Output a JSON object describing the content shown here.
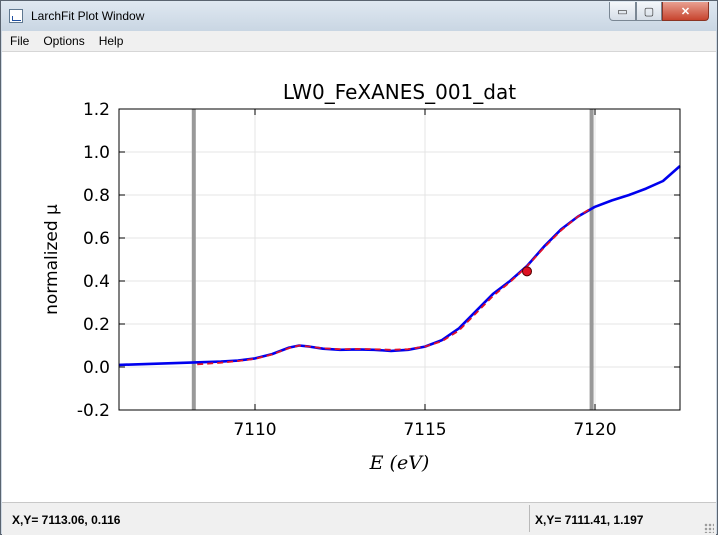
{
  "window": {
    "title": "LarchFit Plot Window",
    "controls": {
      "minimize": "▭",
      "maximize": "▢",
      "close": "✕"
    }
  },
  "menu": {
    "items": [
      "File",
      "Options",
      "Help"
    ]
  },
  "chart_data": {
    "type": "line",
    "title": "LW0_FeXANES_001_dat",
    "xlabel": "E (eV)",
    "ylabel": "normalized μ",
    "xlim": [
      7106,
      7122.5
    ],
    "ylim": [
      -0.2,
      1.2
    ],
    "xticks": [
      7110,
      7115,
      7120
    ],
    "yticks": [
      -0.2,
      0.0,
      0.2,
      0.4,
      0.6,
      0.8,
      1.0,
      1.2
    ],
    "grid": true,
    "series": [
      {
        "style": "solid",
        "color": "#0000ee",
        "x": [
          7106,
          7107,
          7108,
          7109,
          7109.5,
          7110,
          7110.5,
          7111,
          7111.3,
          7111.6,
          7112,
          7112.5,
          7113,
          7113.5,
          7114,
          7114.5,
          7115,
          7115.5,
          7116,
          7116.5,
          7117,
          7117.5,
          7118,
          7118.5,
          7119,
          7119.5,
          7120,
          7120.5,
          7121,
          7121.5,
          7122,
          7122.5
        ],
        "y": [
          0.01,
          0.015,
          0.02,
          0.025,
          0.03,
          0.04,
          0.06,
          0.09,
          0.1,
          0.095,
          0.085,
          0.08,
          0.082,
          0.08,
          0.075,
          0.08,
          0.095,
          0.125,
          0.18,
          0.26,
          0.34,
          0.4,
          0.47,
          0.56,
          0.64,
          0.7,
          0.745,
          0.775,
          0.8,
          0.83,
          0.865,
          0.935
        ]
      },
      {
        "style": "dashed",
        "color": "#e0102a",
        "x": [
          7108.3,
          7109,
          7109.5,
          7110,
          7110.5,
          7111,
          7111.3,
          7111.6,
          7112,
          7112.5,
          7113,
          7113.5,
          7114,
          7114.5,
          7115,
          7115.5,
          7116,
          7116.5,
          7117,
          7117.5,
          7118,
          7118.5,
          7119,
          7119.5,
          7119.9
        ],
        "y": [
          0.012,
          0.02,
          0.028,
          0.038,
          0.058,
          0.088,
          0.1,
          0.095,
          0.087,
          0.083,
          0.084,
          0.083,
          0.08,
          0.083,
          0.095,
          0.12,
          0.17,
          0.25,
          0.33,
          0.395,
          0.468,
          0.555,
          0.635,
          0.7,
          0.74
        ]
      }
    ],
    "markers": [
      {
        "x": 7118,
        "y": 0.445,
        "color": "#dd1122"
      }
    ],
    "vlines": [
      {
        "x": 7108.2,
        "color": "#999999"
      },
      {
        "x": 7119.9,
        "color": "#999999"
      }
    ]
  },
  "status": {
    "left": "X,Y=  7113.06, 0.116",
    "right": "X,Y=  7111.41, 1.197"
  }
}
